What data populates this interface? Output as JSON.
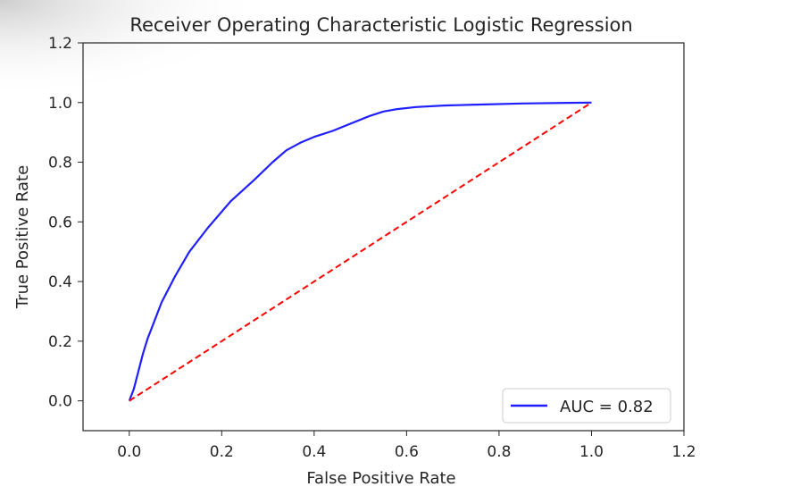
{
  "chart_data": {
    "type": "line",
    "title": "Receiver Operating Characteristic Logistic Regression",
    "xlabel": "False Positive Rate",
    "ylabel": "True Positive Rate",
    "xlim": [
      -0.1,
      1.2
    ],
    "ylim": [
      -0.1,
      1.2
    ],
    "xticks": [
      0.0,
      0.2,
      0.4,
      0.6,
      0.8,
      1.0,
      1.2
    ],
    "yticks": [
      0.0,
      0.2,
      0.4,
      0.6,
      0.8,
      1.0,
      1.2
    ],
    "xtick_labels": [
      "0.0",
      "0.2",
      "0.4",
      "0.6",
      "0.8",
      "1.0",
      "1.2"
    ],
    "ytick_labels": [
      "0.0",
      "0.2",
      "0.4",
      "0.6",
      "0.8",
      "1.0",
      "1.2"
    ],
    "grid": false,
    "legend_position": "lower-right",
    "series": [
      {
        "name": "AUC = 0.82",
        "color": "#1f1fff",
        "style": "solid",
        "x": [
          0.0,
          0.005,
          0.01,
          0.02,
          0.03,
          0.04,
          0.05,
          0.07,
          0.1,
          0.13,
          0.17,
          0.22,
          0.27,
          0.31,
          0.34,
          0.37,
          0.4,
          0.44,
          0.48,
          0.52,
          0.55,
          0.58,
          0.62,
          0.68,
          0.75,
          0.85,
          0.95,
          1.0
        ],
        "y": [
          0.0,
          0.02,
          0.04,
          0.1,
          0.16,
          0.21,
          0.25,
          0.33,
          0.42,
          0.5,
          0.58,
          0.67,
          0.74,
          0.8,
          0.84,
          0.865,
          0.885,
          0.905,
          0.93,
          0.955,
          0.97,
          0.978,
          0.985,
          0.99,
          0.993,
          0.997,
          0.999,
          1.0
        ]
      },
      {
        "color": "#ff0000",
        "style": "dashed",
        "x": [
          0.0,
          1.0
        ],
        "y": [
          0.0,
          1.0
        ]
      }
    ]
  }
}
